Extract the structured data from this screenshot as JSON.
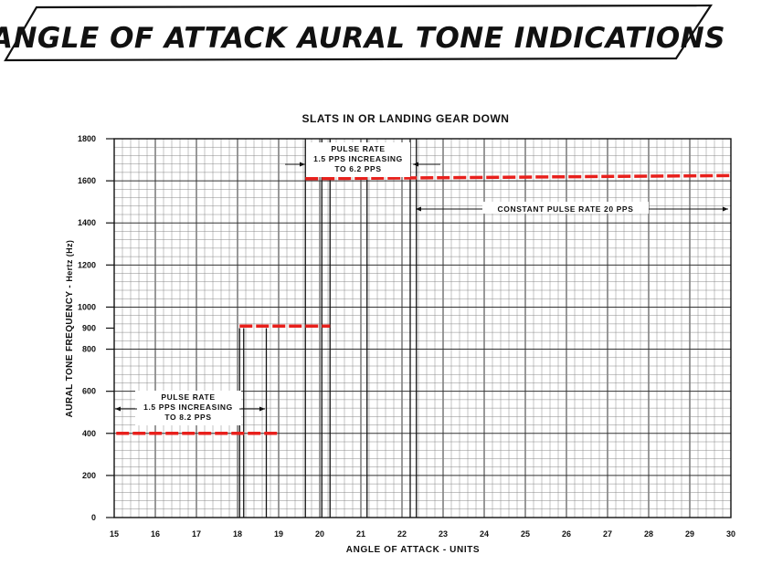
{
  "banner_title": "ANGLE OF ATTACK AURAL TONE INDICATIONS",
  "chart_data": {
    "type": "line",
    "title": "SLATS IN OR LANDING GEAR DOWN",
    "xlabel": "ANGLE OF ATTACK - UNITS",
    "ylabel_main": "AURAL TONE FREQUENCY - ",
    "ylabel_unit": "Hertz (Hz)",
    "xlim": [
      15,
      30
    ],
    "ylim": [
      0,
      1800
    ],
    "x_ticks": [
      "15",
      "16",
      "17",
      "18",
      "19",
      "20",
      "21",
      "22",
      "23",
      "24",
      "25",
      "26",
      "27",
      "28",
      "29",
      "30"
    ],
    "y_ticks": [
      "0",
      "200",
      "400",
      "600",
      "800",
      "900",
      "1000",
      "1200",
      "1400",
      "1600",
      "1800"
    ],
    "grid": true,
    "series_color": "#e8201c",
    "series": [
      {
        "segments": [
          {
            "x": [
              15.05,
              19.0
            ],
            "y": [
              400,
              400
            ]
          },
          {
            "x": [
              18.05,
              20.25
            ],
            "y": [
              910,
              910
            ]
          },
          {
            "x": [
              19.65,
              30.0
            ],
            "y": [
              1610,
              1625
            ]
          }
        ]
      }
    ],
    "annotations": {
      "low": [
        "PULSE RATE",
        "1.5 PPS INCREASING",
        "TO 8.2 PPS"
      ],
      "high": [
        "PULSE RATE",
        "1.5 PPS INCREASING",
        "TO 6.2 PPS"
      ],
      "constant": "CONSTANT PULSE RATE 20 PPS"
    }
  }
}
